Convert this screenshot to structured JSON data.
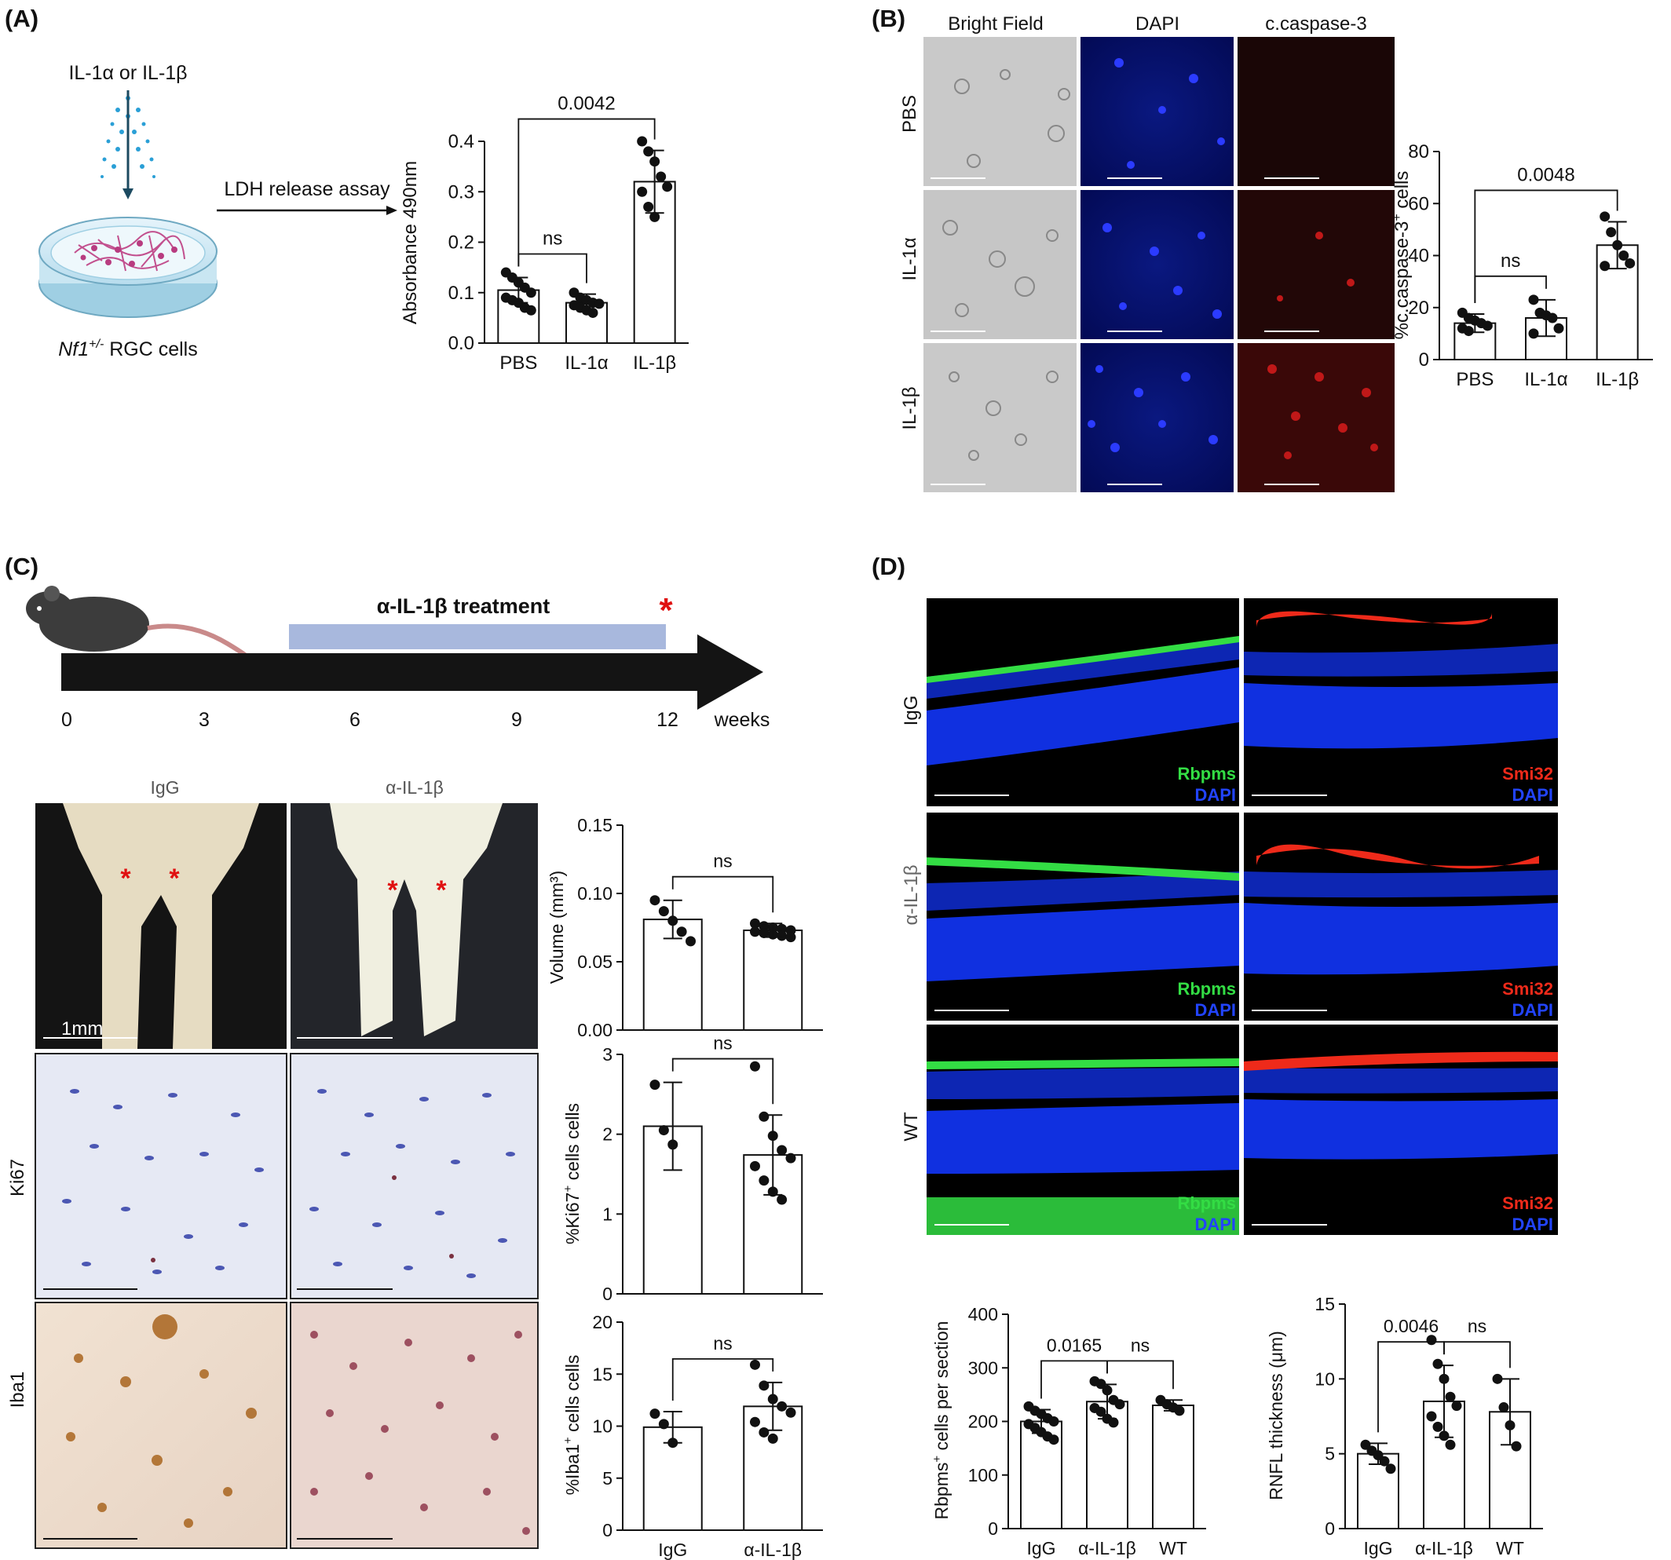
{
  "panelA": {
    "label": "(A)",
    "treatment": "IL-1α or IL-1β",
    "assay": "LDH release assay",
    "cells_gene": "Nf1",
    "cells_super": "+/-",
    "cells_rest": " RGC cells"
  },
  "panelB": {
    "label": "(B)",
    "col_headers": [
      "Bright Field",
      "DAPI",
      "c.caspase-3"
    ],
    "row_labels": [
      "PBS",
      "IL-1α",
      "IL-1β"
    ]
  },
  "panelC": {
    "label": "(C)",
    "treatment_label": "α-IL-1β treatment",
    "timeline_ticks": [
      "0",
      "3",
      "6",
      "9",
      "12"
    ],
    "timeline_unit": "weeks",
    "col_headers": [
      "IgG",
      "α-IL-1β"
    ],
    "row_labels": [
      "Ki67",
      "Iba1"
    ],
    "scale_label": "1mm"
  },
  "panelD": {
    "label": "(D)",
    "row_labels": [
      "IgG",
      "α-IL-1β",
      "WT"
    ],
    "left_stain": "Rbpms",
    "right_stain": "Smi32",
    "dapi": "DAPI"
  },
  "colors": {
    "green": "#33dd44",
    "red": "#ee2a1a",
    "blue": "#2244ff",
    "asterisk": "#e01010",
    "treatment_bar": "#a8b8dd"
  },
  "chart_data": [
    {
      "id": "chartA",
      "type": "bar",
      "categories": [
        "PBS",
        "IL-1α",
        "IL-1β"
      ],
      "values": [
        0.105,
        0.08,
        0.32
      ],
      "errors": [
        0.025,
        0.017,
        0.062
      ],
      "points": [
        [
          0.14,
          0.13,
          0.12,
          0.11,
          0.1,
          0.09,
          0.085,
          0.08,
          0.07,
          0.065
        ],
        [
          0.1,
          0.09,
          0.085,
          0.08,
          0.078,
          0.075,
          0.07,
          0.065,
          0.06
        ],
        [
          0.4,
          0.38,
          0.36,
          0.33,
          0.31,
          0.3,
          0.27,
          0.25
        ]
      ],
      "ylabel": "Absorbance 490nm",
      "ylim": [
        0,
        0.4
      ],
      "yticks": [
        "0.0",
        "0.1",
        "0.2",
        "0.3",
        "0.4"
      ],
      "sig": [
        {
          "from": 0,
          "to": 1,
          "label": "ns"
        },
        {
          "from": 0,
          "to": 2,
          "label": "0.0042"
        }
      ]
    },
    {
      "id": "chartB",
      "type": "bar",
      "categories": [
        "PBS",
        "IL-1α",
        "IL-1β"
      ],
      "values": [
        14,
        16,
        44
      ],
      "errors": [
        3.5,
        7,
        9
      ],
      "points": [
        [
          18,
          16,
          15,
          14,
          13,
          12,
          11
        ],
        [
          23,
          18,
          17,
          16,
          12,
          10
        ],
        [
          55,
          49,
          44,
          40,
          37,
          36
        ]
      ],
      "ylabel": "%c.caspase-3",
      "ylabel_sup": "+",
      "ylabel_tail": " cells",
      "ylim": [
        0,
        80
      ],
      "yticks": [
        "0",
        "20",
        "40",
        "60",
        "80"
      ],
      "sig": [
        {
          "from": 0,
          "to": 1,
          "label": "ns"
        },
        {
          "from": 0,
          "to": 2,
          "label": "0.0048"
        }
      ]
    },
    {
      "id": "chartC1",
      "type": "bar",
      "categories": [
        "",
        ""
      ],
      "values": [
        0.081,
        0.073
      ],
      "errors": [
        0.014,
        0.005
      ],
      "points": [
        [
          0.095,
          0.087,
          0.08,
          0.072,
          0.065
        ],
        [
          0.078,
          0.076,
          0.075,
          0.074,
          0.073,
          0.072,
          0.071,
          0.07,
          0.069,
          0.068
        ]
      ],
      "ylabel": "Volume (mm³)",
      "ylim": [
        0,
        0.15
      ],
      "yticks": [
        "0.00",
        "0.05",
        "0.10",
        "0.15"
      ],
      "sig": [
        {
          "from": 0,
          "to": 1,
          "label": "ns"
        }
      ]
    },
    {
      "id": "chartC2",
      "type": "bar",
      "categories": [
        "",
        ""
      ],
      "values": [
        2.1,
        1.74
      ],
      "errors": [
        0.55,
        0.5
      ],
      "points": [
        [
          2.62,
          2.05,
          1.87
        ],
        [
          2.85,
          2.22,
          1.98,
          1.8,
          1.7,
          1.6,
          1.42,
          1.28,
          1.18
        ]
      ],
      "ylabel": "%Ki67",
      "ylabel_sup": "+",
      "ylabel_tail": " cells cells",
      "ylim": [
        0,
        3
      ],
      "yticks": [
        "0",
        "1",
        "2",
        "3"
      ],
      "sig": [
        {
          "from": 0,
          "to": 1,
          "label": "ns"
        }
      ]
    },
    {
      "id": "chartC3",
      "type": "bar",
      "categories": [
        "IgG",
        "α-IL-1β"
      ],
      "values": [
        9.9,
        11.9
      ],
      "errors": [
        1.5,
        2.3
      ],
      "points": [
        [
          11.2,
          10.2,
          8.4
        ],
        [
          15.9,
          13.9,
          12.6,
          11.9,
          11.3,
          10.4,
          9.4,
          8.8
        ]
      ],
      "ylabel": "%Iba1",
      "ylabel_sup": "+",
      "ylabel_tail": " cells cells",
      "ylim": [
        0,
        20
      ],
      "yticks": [
        "0",
        "5",
        "10",
        "15",
        "20"
      ],
      "sig": [
        {
          "from": 0,
          "to": 1,
          "label": "ns"
        }
      ]
    },
    {
      "id": "chartD1",
      "type": "bar",
      "categories": [
        "IgG",
        "α-IL-1β",
        "WT"
      ],
      "values": [
        200,
        237,
        230
      ],
      "errors": [
        22,
        32,
        10
      ],
      "points": [
        [
          228,
          220,
          214,
          206,
          200,
          195,
          188,
          180,
          172,
          166
        ],
        [
          275,
          270,
          258,
          240,
          232,
          225,
          218,
          205,
          198
        ],
        [
          240,
          232,
          226,
          220
        ]
      ],
      "ylabel": "Rbpms",
      "ylabel_sup": "+",
      "ylabel_tail": " cells per section",
      "ylim": [
        0,
        400
      ],
      "yticks": [
        "0",
        "100",
        "200",
        "300",
        "400"
      ],
      "sig": [
        {
          "from": 0,
          "to": 1,
          "label": "0.0165"
        },
        {
          "from": 1,
          "to": 2,
          "label": "ns"
        }
      ]
    },
    {
      "id": "chartD2",
      "type": "bar",
      "categories": [
        "IgG",
        "α-IL-1β",
        "WT"
      ],
      "values": [
        5,
        8.5,
        7.8
      ],
      "errors": [
        0.7,
        2.4,
        2.2
      ],
      "points": [
        [
          5.6,
          5.2,
          4.9,
          4.5,
          4.0
        ],
        [
          12.6,
          11.0,
          10.0,
          8.8,
          8.2,
          7.5,
          6.8,
          6.2,
          5.6
        ],
        [
          10.0,
          8.1,
          6.9,
          5.5
        ]
      ],
      "ylabel": "RNFL thickness (μm)",
      "ylim": [
        0,
        15
      ],
      "yticks": [
        "0",
        "5",
        "10",
        "15"
      ],
      "sig": [
        {
          "from": 0,
          "to": 1,
          "label": "0.0046"
        },
        {
          "from": 1,
          "to": 2,
          "label": "ns"
        }
      ]
    }
  ]
}
